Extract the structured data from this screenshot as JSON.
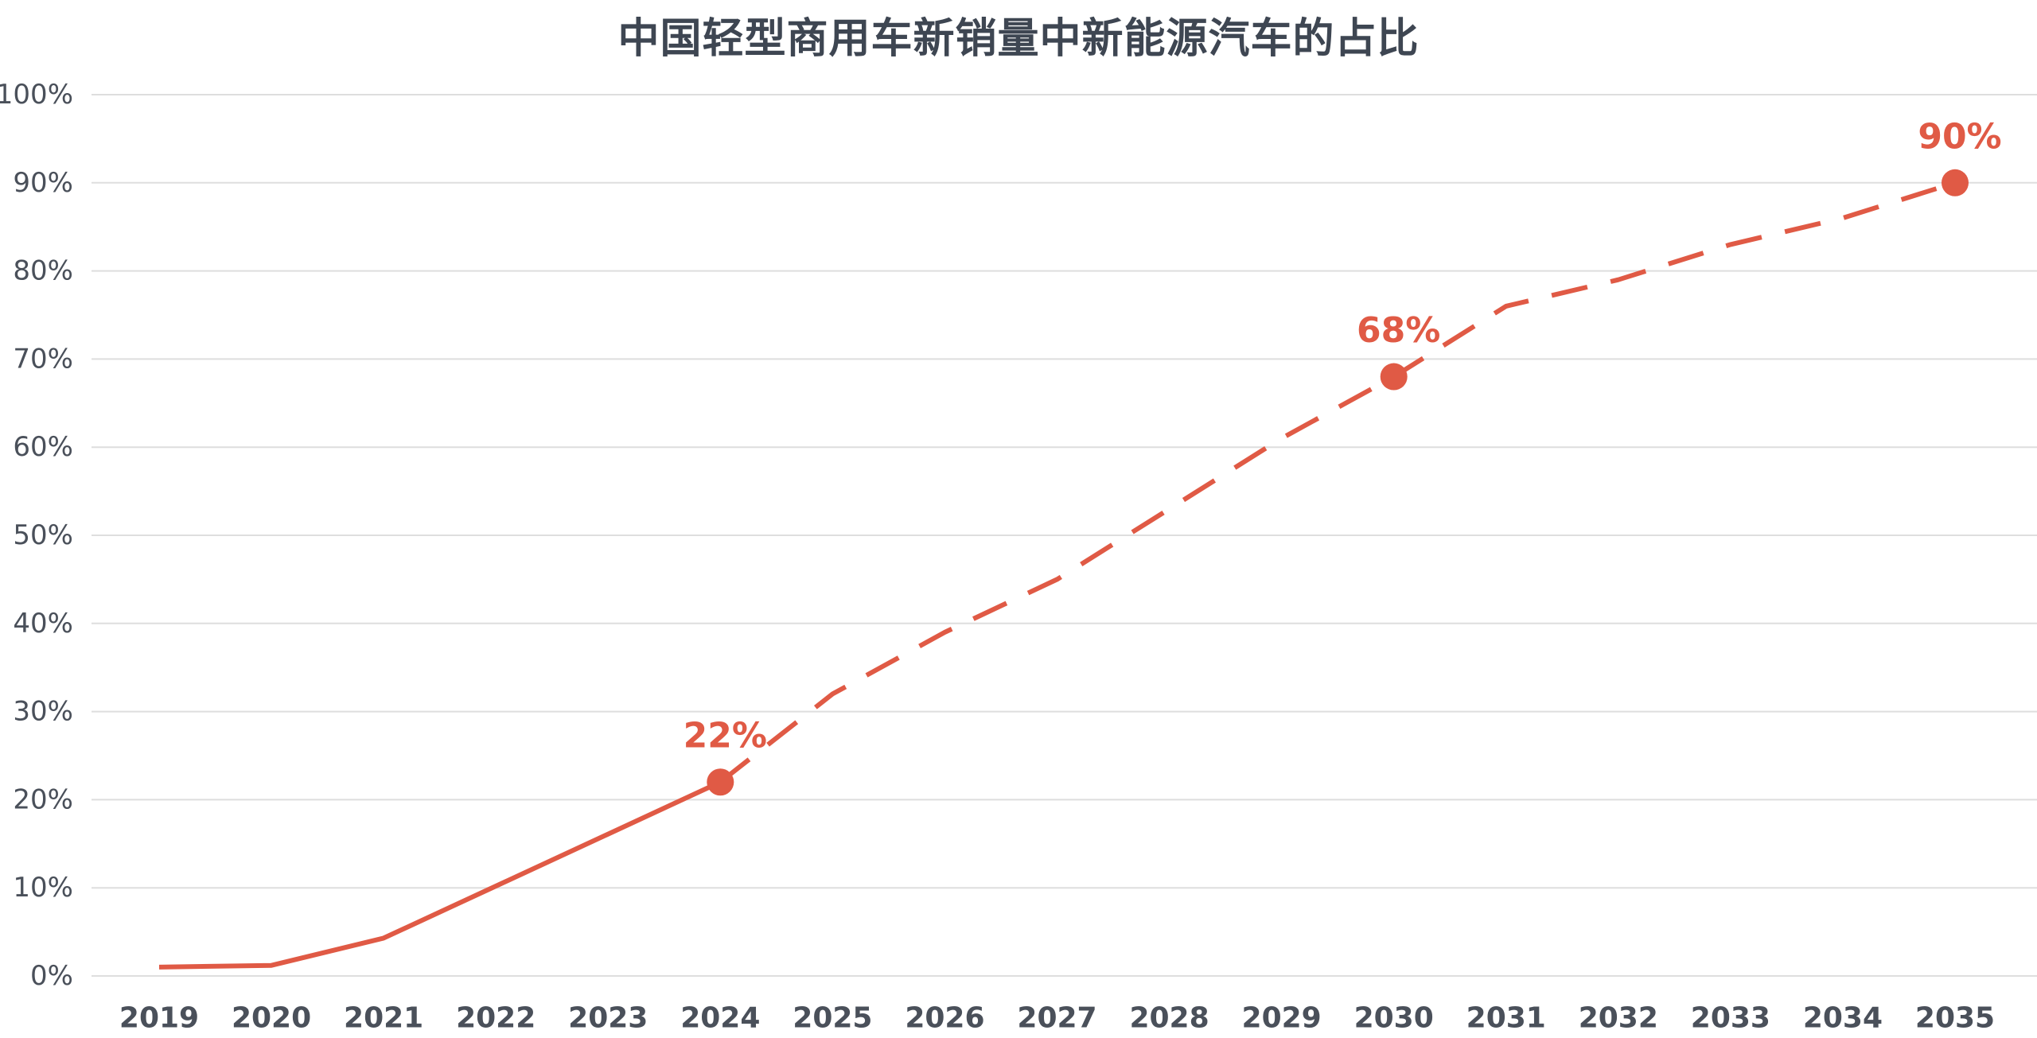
{
  "chart_data": {
    "type": "line",
    "title": "中国轻型商用车新销量中新能源汽车的占比",
    "xlabel": "",
    "ylabel": "",
    "x": [
      2019,
      2020,
      2021,
      2022,
      2023,
      2024,
      2025,
      2026,
      2027,
      2028,
      2029,
      2030,
      2031,
      2032,
      2033,
      2034,
      2035
    ],
    "ylim": [
      0,
      100
    ],
    "yticks": [
      "0%",
      "10%",
      "20%",
      "30%",
      "40%",
      "50%",
      "60%",
      "70%",
      "80%",
      "90%",
      "100%"
    ],
    "grid": true,
    "series": [
      {
        "style": "solid",
        "x": [
          2019,
          2020,
          2021,
          2022,
          2023,
          2024
        ],
        "values": [
          1,
          1.2,
          4.3,
          10.2,
          16.1,
          22
        ]
      },
      {
        "style": "dashed",
        "x": [
          2024,
          2025,
          2026,
          2027,
          2028,
          2029,
          2030,
          2031,
          2032,
          2033,
          2034,
          2035
        ],
        "values": [
          22,
          32,
          39,
          45,
          53,
          61,
          68,
          76,
          79,
          83,
          86,
          90
        ]
      }
    ],
    "highlights": [
      {
        "x": 2024,
        "value": 22,
        "label": "22%"
      },
      {
        "x": 2030,
        "value": 68,
        "label": "68%"
      },
      {
        "x": 2035,
        "value": 90,
        "label": "90%"
      }
    ],
    "colors": {
      "line": "#e05a45",
      "text": "#3e4652",
      "grid": "#dedede"
    }
  }
}
